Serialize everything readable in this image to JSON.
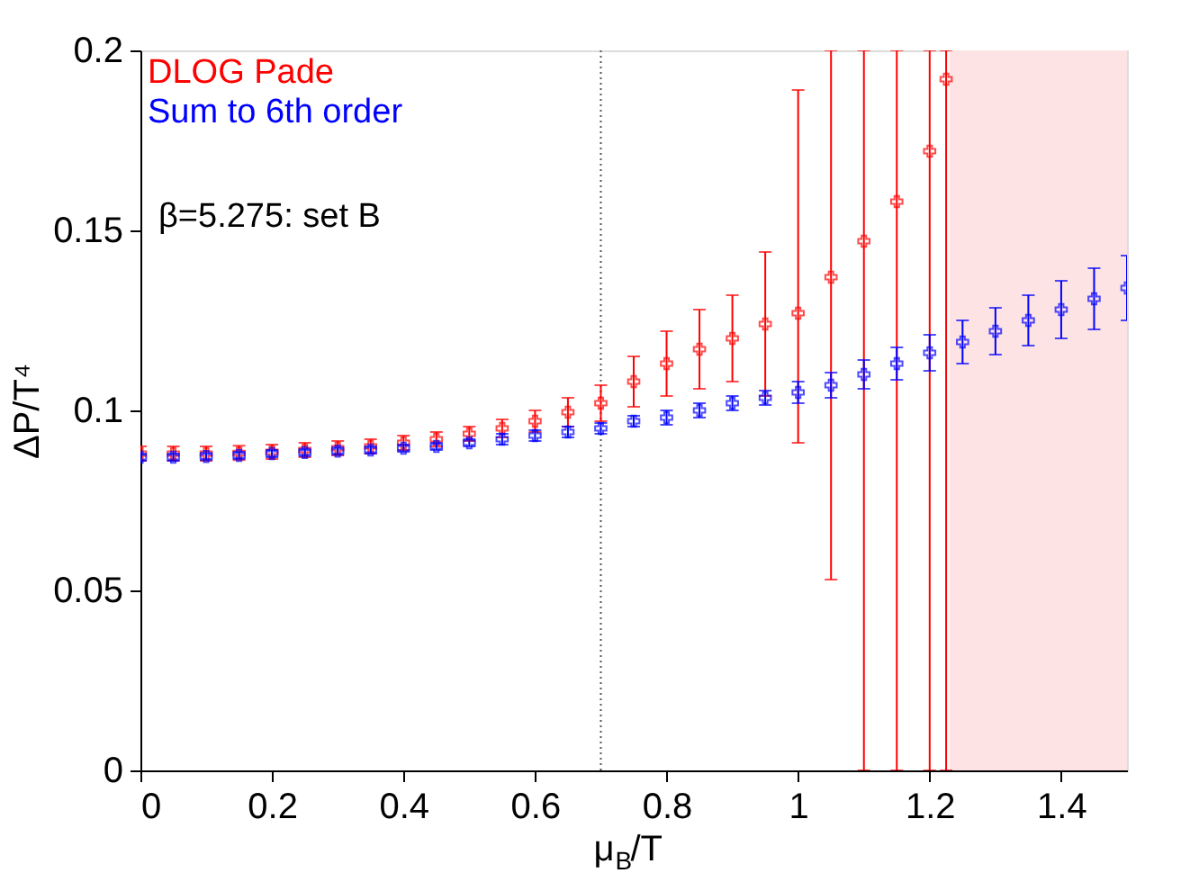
{
  "chart_data": {
    "type": "scatter",
    "xlabel": "μ$_{B}$/T",
    "ylabel": "ΔP/T⁴",
    "xlim": [
      0,
      1.5
    ],
    "ylim": [
      0,
      0.2
    ],
    "xticks": [
      0,
      0.2,
      0.4,
      0.6,
      0.8,
      1,
      1.2,
      1.4
    ],
    "yticks": [
      0,
      0.05,
      0.1,
      0.15,
      0.2
    ],
    "grid": false,
    "legend": "top left",
    "marker": "cross",
    "annotations": [
      "β=5.275: set B"
    ],
    "ref_lines": [
      {
        "axis": "x",
        "value": 0.7,
        "label": null,
        "color": "#555555",
        "line_style": "dotted"
      }
    ],
    "bands": [
      {
        "axis": "x",
        "from": 1.23,
        "to": 1.5,
        "label": null,
        "color": "#fde3e3"
      }
    ],
    "series": [
      {
        "name": "DLOG Pade",
        "color": "#ff0000",
        "x": [
          0,
          0.05,
          0.1,
          0.15,
          0.2,
          0.25,
          0.3,
          0.35,
          0.4,
          0.45,
          0.5,
          0.55,
          0.6,
          0.65,
          0.7,
          0.75,
          0.8,
          0.85,
          0.9,
          0.95,
          1.0,
          1.05,
          1.1,
          1.15,
          1.2,
          1.225
        ],
        "values": [
          0.088,
          0.088,
          0.088,
          0.0882,
          0.0885,
          0.089,
          0.0895,
          0.09,
          0.091,
          0.092,
          0.0935,
          0.095,
          0.097,
          0.0995,
          0.102,
          0.108,
          0.113,
          0.117,
          0.12,
          0.124,
          0.127,
          0.137,
          0.147,
          0.158,
          0.172,
          0.192
        ],
        "errors": [
          0.002,
          0.002,
          0.002,
          0.002,
          0.002,
          0.002,
          0.002,
          0.002,
          0.002,
          0.002,
          0.002,
          0.0025,
          0.003,
          0.004,
          0.005,
          0.007,
          0.009,
          0.011,
          0.012,
          0.02,
          [
            0.091,
            0.189
          ],
          [
            0.053,
            0.2
          ],
          [
            0,
            0.2
          ],
          [
            0,
            0.2
          ],
          [
            0,
            0.2
          ],
          [
            0,
            0.2
          ]
        ]
      },
      {
        "name": "Sum to 6th order",
        "color": "#0000ff",
        "x": [
          0,
          0.05,
          0.1,
          0.15,
          0.2,
          0.25,
          0.3,
          0.35,
          0.4,
          0.45,
          0.5,
          0.55,
          0.6,
          0.65,
          0.7,
          0.75,
          0.8,
          0.85,
          0.9,
          0.95,
          1.0,
          1.05,
          1.1,
          1.15,
          1.2,
          1.25,
          1.3,
          1.35,
          1.4,
          1.45,
          1.5
        ],
        "values": [
          0.087,
          0.087,
          0.0872,
          0.0875,
          0.088,
          0.0883,
          0.0887,
          0.089,
          0.0895,
          0.09,
          0.091,
          0.092,
          0.093,
          0.094,
          0.095,
          0.097,
          0.098,
          0.1,
          0.102,
          0.1035,
          0.105,
          0.107,
          0.11,
          0.113,
          0.116,
          0.119,
          0.122,
          0.125,
          0.128,
          0.131,
          0.134
        ],
        "errors": [
          0.001,
          0.001,
          0.001,
          0.001,
          0.001,
          0.001,
          0.001,
          0.001,
          0.001,
          0.001,
          0.001,
          0.0015,
          0.0015,
          0.0015,
          0.0015,
          0.0015,
          0.002,
          0.002,
          0.002,
          0.002,
          0.003,
          0.0035,
          0.004,
          0.0045,
          0.005,
          0.006,
          0.0065,
          0.007,
          0.008,
          0.0085,
          0.009
        ]
      }
    ]
  }
}
